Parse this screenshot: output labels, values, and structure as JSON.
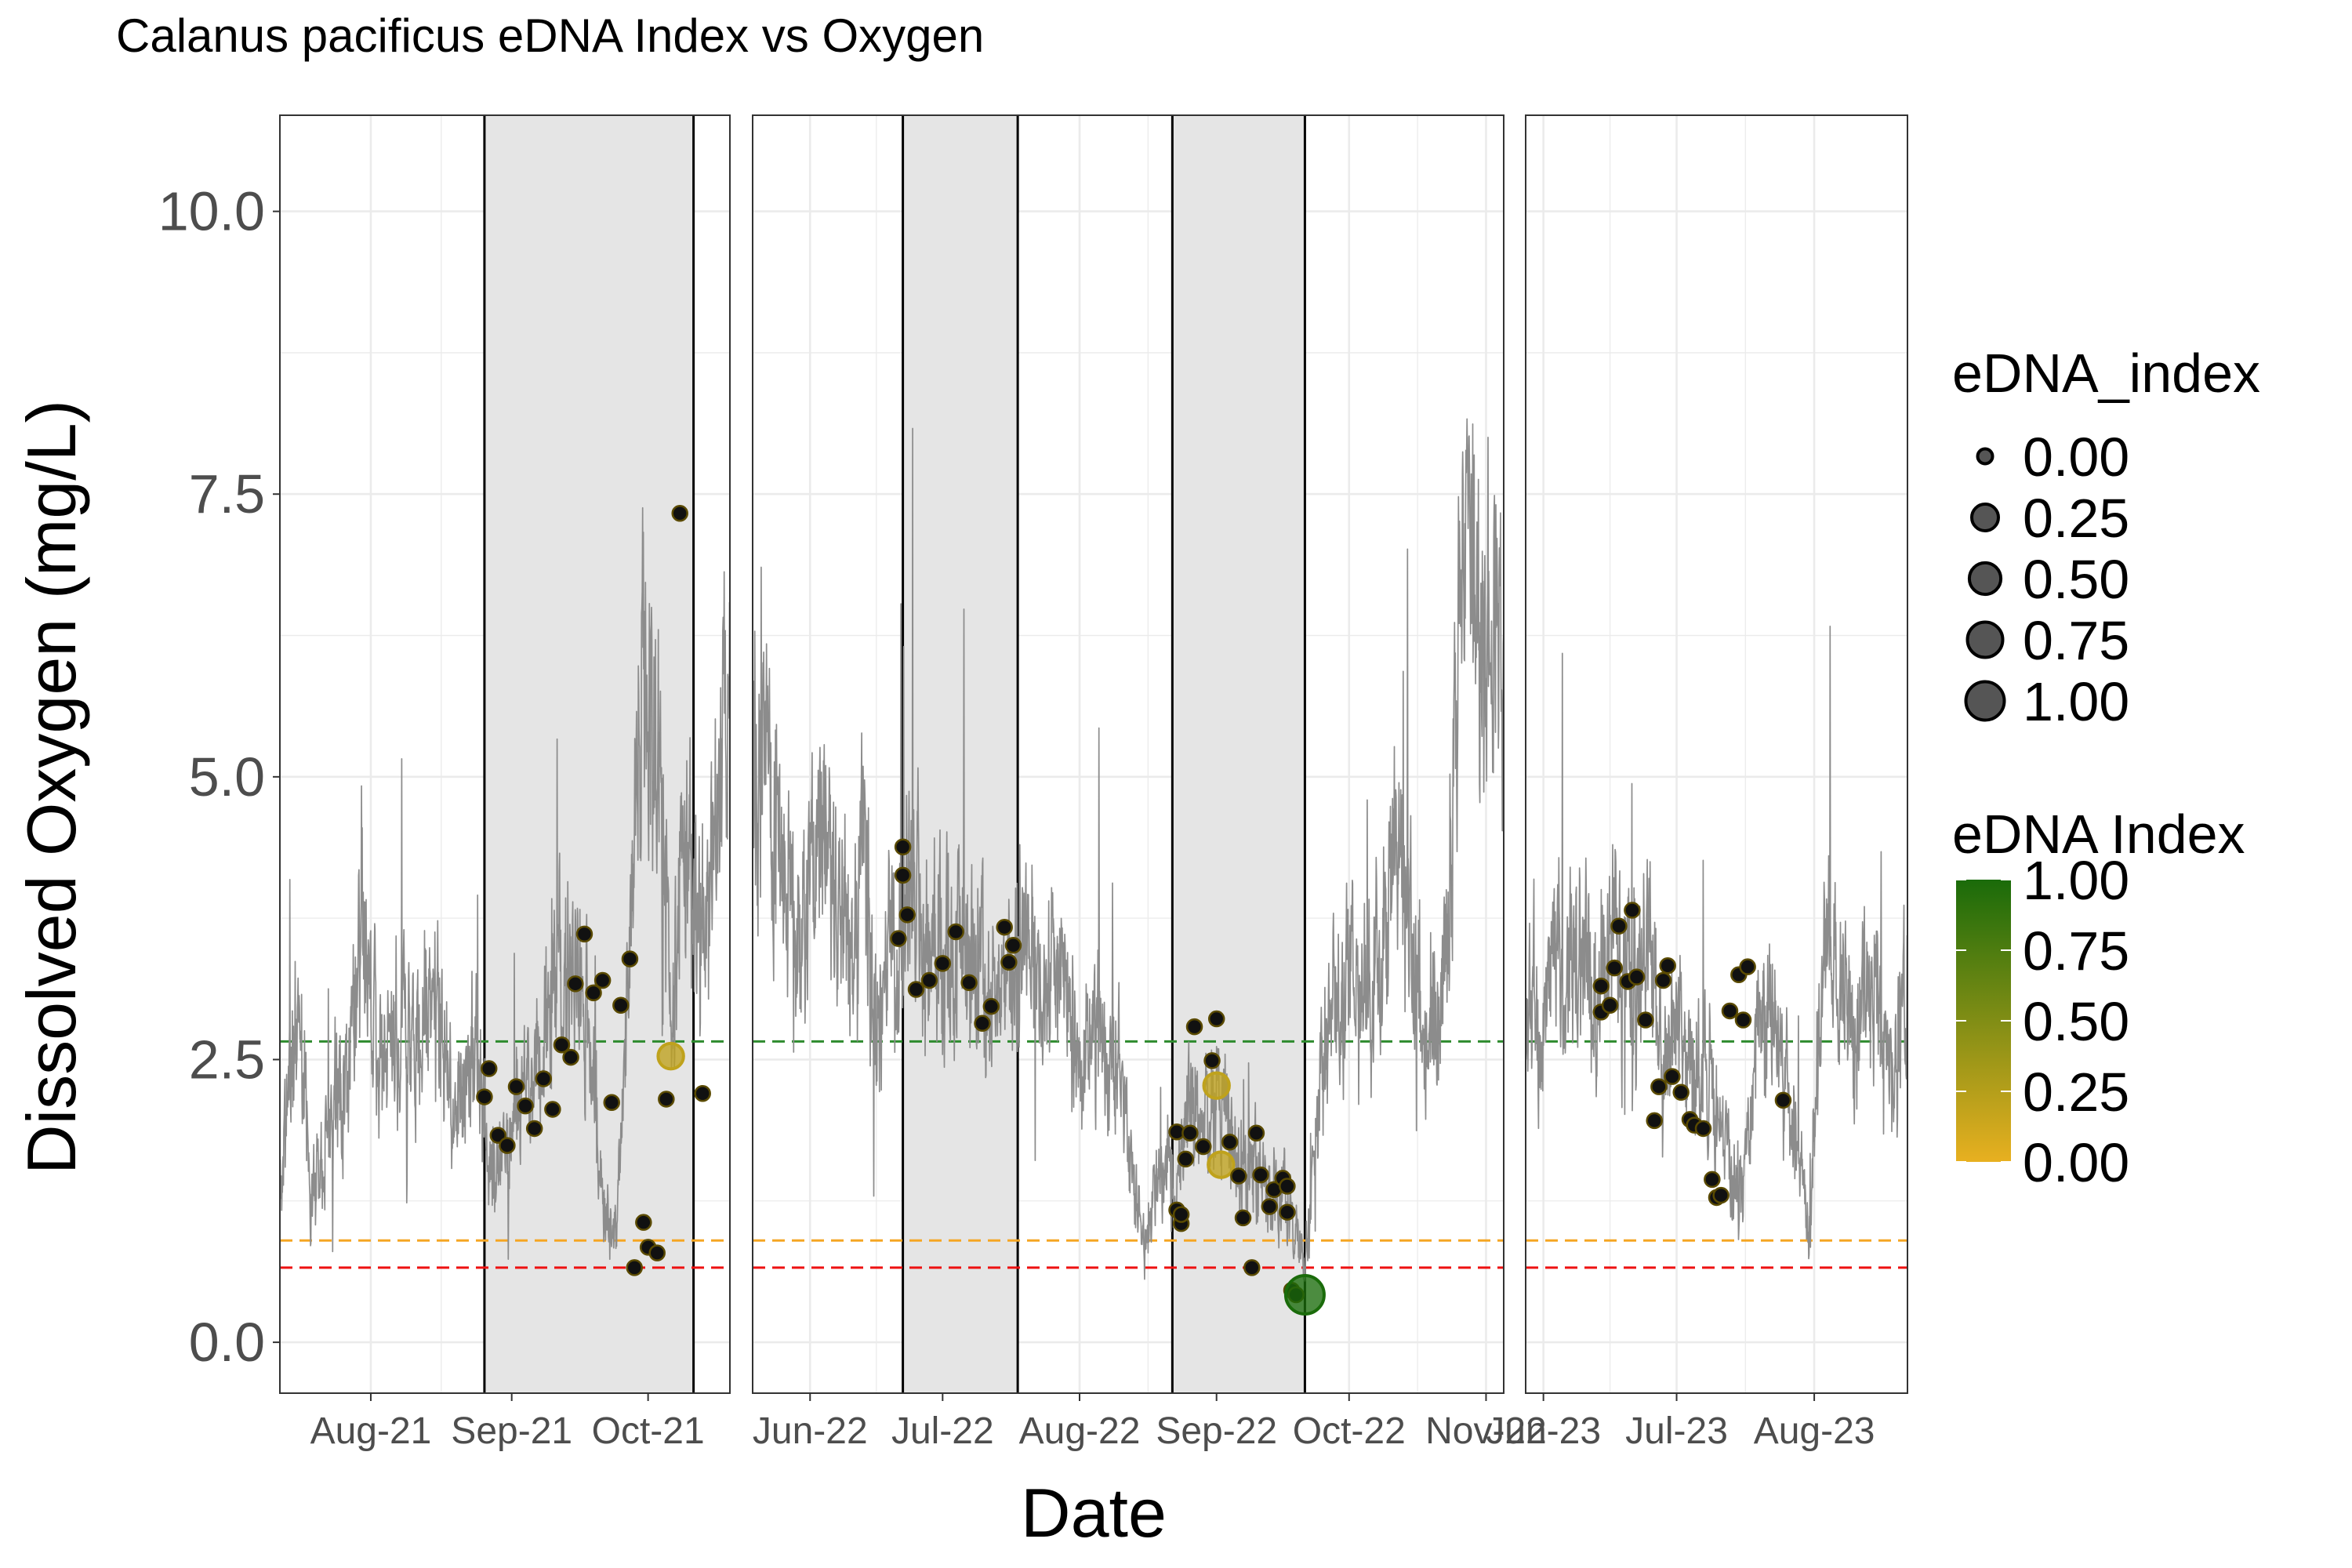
{
  "chart_data": {
    "type": "scatter",
    "title": "Calanus pacificus eDNA Index vs Oxygen",
    "xlabel": "Date",
    "ylabel": "Dissolved Oxygen (mg/L)",
    "ylim": [
      -0.45,
      10.85
    ],
    "y_ticks": [
      0,
      2.5,
      5,
      7.5,
      10
    ],
    "y_tick_labels": [
      "0.0",
      "2.5",
      "5.0",
      "7.5",
      "10.0"
    ],
    "grid": true,
    "legend_position": "right",
    "reference_lines": [
      {
        "y": 2.66,
        "color": "#2e8b2e"
      },
      {
        "y": 0.9,
        "color": "#f5a623"
      },
      {
        "y": 0.66,
        "color": "#ee1111"
      }
    ],
    "colors": {
      "low": "#e8b020",
      "high": "#1a6b0a",
      "line": "#8c8c8c",
      "shade": "#e5e5e5"
    },
    "panels": [
      {
        "xlim": [
          "2021-07-12",
          "2021-10-19"
        ],
        "ticks": [
          "2021-08-01",
          "2021-09-01",
          "2021-10-01"
        ],
        "tick_labels": [
          "Aug-21",
          "Sep-21",
          "Oct-21"
        ],
        "shaded": [
          [
            "2021-08-26",
            "2021-10-11"
          ]
        ],
        "line_seed": 11,
        "line_anchors": [
          [
            "2021-07-12",
            1.4
          ],
          [
            "2021-07-16",
            3.0
          ],
          [
            "2021-07-19",
            1.3
          ],
          [
            "2021-07-23",
            2.1
          ],
          [
            "2021-07-27",
            2.4
          ],
          [
            "2021-07-30",
            3.9
          ],
          [
            "2021-08-03",
            2.4
          ],
          [
            "2021-08-08",
            2.8
          ],
          [
            "2021-08-12",
            2.6
          ],
          [
            "2021-08-15",
            3.2
          ],
          [
            "2021-08-19",
            2.0
          ],
          [
            "2021-08-23",
            2.6
          ],
          [
            "2021-08-26",
            2.0
          ],
          [
            "2021-08-29",
            1.5
          ],
          [
            "2021-09-02",
            2.0
          ],
          [
            "2021-09-06",
            2.4
          ],
          [
            "2021-09-10",
            3.0
          ],
          [
            "2021-09-14",
            3.3
          ],
          [
            "2021-09-18",
            2.8
          ],
          [
            "2021-09-21",
            1.3
          ],
          [
            "2021-09-24",
            1.0
          ],
          [
            "2021-09-27",
            3.5
          ],
          [
            "2021-09-30",
            6.0
          ],
          [
            "2021-10-03",
            5.2
          ],
          [
            "2021-10-06",
            3.0
          ],
          [
            "2021-10-09",
            4.2
          ],
          [
            "2021-10-12",
            3.5
          ],
          [
            "2021-10-16",
            4.5
          ],
          [
            "2021-10-19",
            5.5
          ]
        ],
        "points": [
          [
            "2021-08-26",
            2.17,
            0
          ],
          [
            "2021-08-27",
            2.42,
            0
          ],
          [
            "2021-08-29",
            1.83,
            0
          ],
          [
            "2021-08-31",
            1.74,
            0
          ],
          [
            "2021-09-02",
            2.26,
            0
          ],
          [
            "2021-09-04",
            2.09,
            0
          ],
          [
            "2021-09-06",
            1.89,
            0
          ],
          [
            "2021-09-08",
            2.33,
            0
          ],
          [
            "2021-09-10",
            2.06,
            0
          ],
          [
            "2021-09-12",
            2.63,
            0
          ],
          [
            "2021-09-14",
            2.52,
            0
          ],
          [
            "2021-09-15",
            3.17,
            0
          ],
          [
            "2021-09-17",
            3.61,
            0
          ],
          [
            "2021-09-19",
            3.09,
            0
          ],
          [
            "2021-09-21",
            3.2,
            0
          ],
          [
            "2021-09-23",
            2.12,
            0
          ],
          [
            "2021-09-25",
            2.98,
            0
          ],
          [
            "2021-09-27",
            3.39,
            0
          ],
          [
            "2021-09-28",
            0.66,
            0
          ],
          [
            "2021-09-30",
            1.06,
            0
          ],
          [
            "2021-10-01",
            0.84,
            0
          ],
          [
            "2021-10-03",
            0.79,
            0
          ],
          [
            "2021-10-05",
            2.15,
            0
          ],
          [
            "2021-10-06",
            2.53,
            0.2
          ],
          [
            "2021-10-08",
            7.33,
            0
          ],
          [
            "2021-10-13",
            2.2,
            0
          ]
        ]
      },
      {
        "xlim": [
          "2022-05-19",
          "2022-11-05"
        ],
        "ticks": [
          "2022-06-01",
          "2022-07-01",
          "2022-08-01",
          "2022-09-01",
          "2022-10-01",
          "2022-11-01"
        ],
        "tick_labels": [
          "Jun-22",
          "Jul-22",
          "Aug-22",
          "Sep-22",
          "Oct-22",
          "Nov-22"
        ],
        "shaded": [
          [
            "2022-06-22",
            "2022-07-18"
          ],
          [
            "2022-08-22",
            "2022-09-21"
          ]
        ],
        "line_seed": 22,
        "line_anchors": [
          [
            "2022-05-19",
            6.0
          ],
          [
            "2022-05-22",
            5.2
          ],
          [
            "2022-05-26",
            4.0
          ],
          [
            "2022-05-30",
            3.6
          ],
          [
            "2022-06-03",
            4.3
          ],
          [
            "2022-06-07",
            4.1
          ],
          [
            "2022-06-10",
            3.1
          ],
          [
            "2022-06-13",
            4.4
          ],
          [
            "2022-06-16",
            2.7
          ],
          [
            "2022-06-19",
            3.4
          ],
          [
            "2022-06-22",
            3.5
          ],
          [
            "2022-06-24",
            4.3
          ],
          [
            "2022-06-27",
            3.4
          ],
          [
            "2022-07-01",
            3.2
          ],
          [
            "2022-07-05",
            3.5
          ],
          [
            "2022-07-09",
            3.4
          ],
          [
            "2022-07-13",
            2.9
          ],
          [
            "2022-07-17",
            3.5
          ],
          [
            "2022-07-21",
            3.3
          ],
          [
            "2022-07-25",
            3.4
          ],
          [
            "2022-07-29",
            3.0
          ],
          [
            "2022-08-02",
            2.7
          ],
          [
            "2022-08-06",
            2.6
          ],
          [
            "2022-08-10",
            2.4
          ],
          [
            "2022-08-13",
            1.5
          ],
          [
            "2022-08-16",
            0.8
          ],
          [
            "2022-08-20",
            1.8
          ],
          [
            "2022-08-23",
            1.2
          ],
          [
            "2022-08-26",
            2.3
          ],
          [
            "2022-08-29",
            1.9
          ],
          [
            "2022-09-02",
            2.2
          ],
          [
            "2022-09-06",
            1.6
          ],
          [
            "2022-09-10",
            1.5
          ],
          [
            "2022-09-14",
            1.3
          ],
          [
            "2022-09-18",
            1.1
          ],
          [
            "2022-09-21",
            0.6
          ],
          [
            "2022-09-24",
            2.2
          ],
          [
            "2022-09-28",
            3.0
          ],
          [
            "2022-10-02",
            3.3
          ],
          [
            "2022-10-06",
            2.9
          ],
          [
            "2022-10-10",
            4.0
          ],
          [
            "2022-10-13",
            4.3
          ],
          [
            "2022-10-16",
            3.3
          ],
          [
            "2022-10-19",
            2.6
          ],
          [
            "2022-10-22",
            3.0
          ],
          [
            "2022-10-26",
            6.2
          ],
          [
            "2022-10-29",
            7.6
          ],
          [
            "2022-11-01",
            6.5
          ],
          [
            "2022-11-05",
            6.2
          ]
        ],
        "points": [
          [
            "2022-06-21",
            3.57,
            0
          ],
          [
            "2022-06-22",
            4.38,
            0
          ],
          [
            "2022-06-22",
            4.13,
            0
          ],
          [
            "2022-06-23",
            3.78,
            0
          ],
          [
            "2022-06-25",
            3.12,
            0
          ],
          [
            "2022-06-28",
            3.2,
            0
          ],
          [
            "2022-07-01",
            3.35,
            0
          ],
          [
            "2022-07-04",
            3.63,
            0
          ],
          [
            "2022-07-07",
            3.18,
            0
          ],
          [
            "2022-07-10",
            2.82,
            0
          ],
          [
            "2022-07-12",
            2.97,
            0
          ],
          [
            "2022-07-15",
            3.67,
            0
          ],
          [
            "2022-07-16",
            3.36,
            0
          ],
          [
            "2022-07-17",
            3.51,
            0
          ],
          [
            "2022-08-23",
            1.86,
            0
          ],
          [
            "2022-08-23",
            1.17,
            0
          ],
          [
            "2022-08-24",
            1.05,
            0
          ],
          [
            "2022-08-24",
            1.13,
            0
          ],
          [
            "2022-08-25",
            1.62,
            0
          ],
          [
            "2022-08-26",
            1.85,
            0
          ],
          [
            "2022-08-27",
            2.79,
            0
          ],
          [
            "2022-08-29",
            1.73,
            0
          ],
          [
            "2022-08-31",
            2.49,
            0
          ],
          [
            "2022-09-01",
            2.86,
            0
          ],
          [
            "2022-09-01",
            2.27,
            0.2
          ],
          [
            "2022-09-02",
            1.57,
            0.2
          ],
          [
            "2022-09-04",
            1.77,
            0
          ],
          [
            "2022-09-06",
            1.47,
            0
          ],
          [
            "2022-09-07",
            1.1,
            0
          ],
          [
            "2022-09-09",
            0.66,
            0
          ],
          [
            "2022-09-10",
            1.85,
            0
          ],
          [
            "2022-09-11",
            1.48,
            0
          ],
          [
            "2022-09-13",
            1.2,
            0
          ],
          [
            "2022-09-14",
            1.35,
            0
          ],
          [
            "2022-09-16",
            1.45,
            0
          ],
          [
            "2022-09-17",
            1.38,
            0
          ],
          [
            "2022-09-17",
            1.15,
            0
          ],
          [
            "2022-09-18",
            0.46,
            0
          ],
          [
            "2022-09-19",
            0.42,
            0
          ],
          [
            "2022-09-21",
            0.42,
            1.0
          ]
        ]
      },
      {
        "xlim": [
          "2023-05-28",
          "2023-08-22"
        ],
        "ticks": [
          "2023-06-01",
          "2023-07-01",
          "2023-08-01"
        ],
        "tick_labels": [
          "Jun-23",
          "Jul-23",
          "Aug-23"
        ],
        "shaded": [],
        "line_seed": 33,
        "line_anchors": [
          [
            "2023-05-28",
            3.0
          ],
          [
            "2023-05-31",
            2.6
          ],
          [
            "2023-06-03",
            3.4
          ],
          [
            "2023-06-06",
            3.1
          ],
          [
            "2023-06-09",
            3.3
          ],
          [
            "2023-06-13",
            3.0
          ],
          [
            "2023-06-16",
            3.6
          ],
          [
            "2023-06-19",
            3.4
          ],
          [
            "2023-06-22",
            3.0
          ],
          [
            "2023-06-25",
            3.4
          ],
          [
            "2023-06-28",
            2.2
          ],
          [
            "2023-07-01",
            3.0
          ],
          [
            "2023-07-04",
            2.3
          ],
          [
            "2023-07-07",
            2.6
          ],
          [
            "2023-07-10",
            1.9
          ],
          [
            "2023-07-13",
            1.6
          ],
          [
            "2023-07-16",
            1.3
          ],
          [
            "2023-07-19",
            2.6
          ],
          [
            "2023-07-22",
            3.0
          ],
          [
            "2023-07-25",
            2.4
          ],
          [
            "2023-07-28",
            1.8
          ],
          [
            "2023-07-31",
            0.9
          ],
          [
            "2023-08-03",
            3.8
          ],
          [
            "2023-08-06",
            3.5
          ],
          [
            "2023-08-10",
            2.6
          ],
          [
            "2023-08-14",
            3.1
          ],
          [
            "2023-08-18",
            2.2
          ],
          [
            "2023-08-22",
            3.2
          ]
        ],
        "points": [
          [
            "2023-06-14",
            3.15,
            0
          ],
          [
            "2023-06-14",
            2.92,
            0
          ],
          [
            "2023-06-16",
            2.98,
            0
          ],
          [
            "2023-06-17",
            3.31,
            0
          ],
          [
            "2023-06-18",
            3.68,
            0
          ],
          [
            "2023-06-20",
            3.19,
            0
          ],
          [
            "2023-06-21",
            3.82,
            0
          ],
          [
            "2023-06-22",
            3.23,
            0
          ],
          [
            "2023-06-24",
            2.85,
            0
          ],
          [
            "2023-06-26",
            1.96,
            0
          ],
          [
            "2023-06-27",
            2.26,
            0
          ],
          [
            "2023-06-28",
            3.2,
            0
          ],
          [
            "2023-06-29",
            3.33,
            0
          ],
          [
            "2023-06-30",
            2.35,
            0
          ],
          [
            "2023-07-02",
            2.21,
            0
          ],
          [
            "2023-07-04",
            1.97,
            0
          ],
          [
            "2023-07-05",
            1.92,
            0
          ],
          [
            "2023-07-07",
            1.89,
            0
          ],
          [
            "2023-07-09",
            1.44,
            0
          ],
          [
            "2023-07-10",
            1.28,
            0
          ],
          [
            "2023-07-11",
            1.3,
            0
          ],
          [
            "2023-07-13",
            2.93,
            0
          ],
          [
            "2023-07-15",
            3.25,
            0
          ],
          [
            "2023-07-16",
            2.85,
            0
          ],
          [
            "2023-07-17",
            3.32,
            0
          ],
          [
            "2023-07-25",
            2.14,
            0
          ]
        ]
      }
    ],
    "legend_size": {
      "title": "eDNA_index",
      "values": [
        0,
        0.25,
        0.5,
        0.75,
        1
      ],
      "labels": [
        "0.00",
        "0.25",
        "0.50",
        "0.75",
        "1.00"
      ]
    },
    "legend_color": {
      "title": "eDNA Index",
      "values": [
        0,
        0.25,
        0.5,
        0.75,
        1
      ],
      "labels": [
        "0.00",
        "0.25",
        "0.50",
        "0.75",
        "1.00"
      ]
    }
  }
}
